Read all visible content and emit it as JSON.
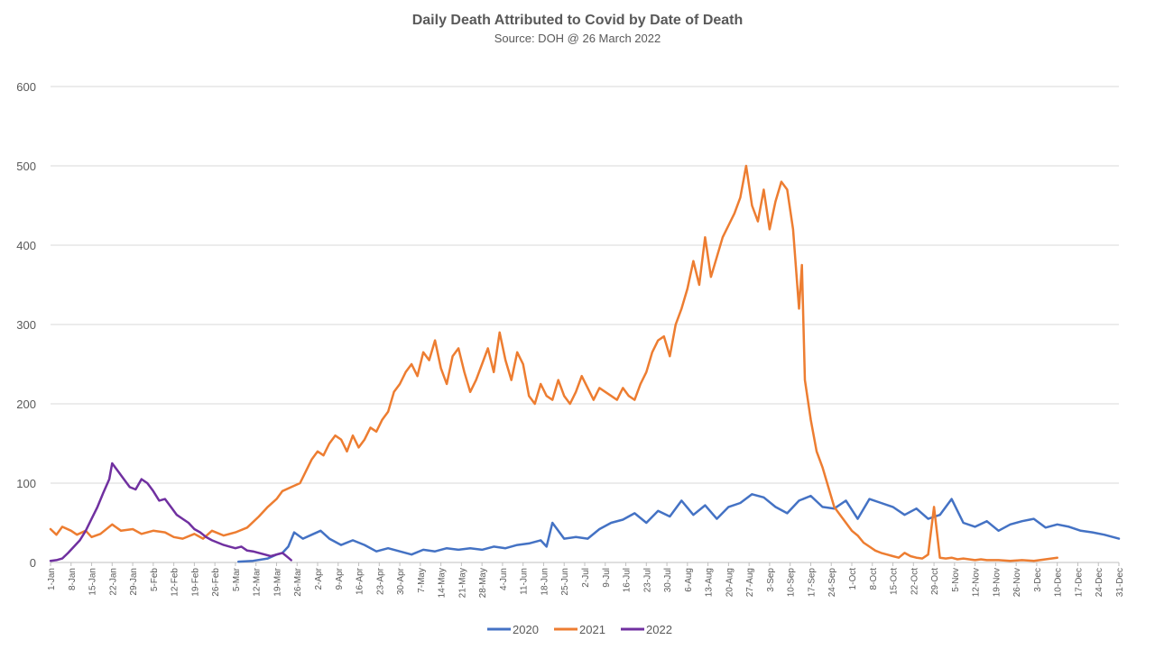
{
  "chart_data": {
    "type": "line",
    "title": "Daily Death Attributed to Covid by Date of Death",
    "subtitle": "Source: DOH @ 26 March 2022",
    "xlabel": "",
    "ylabel": "",
    "ylim": [
      0,
      600
    ],
    "yticks": [
      0,
      100,
      200,
      300,
      400,
      500,
      600
    ],
    "grid": true,
    "legend": "bottom",
    "xlim": [
      1,
      365
    ],
    "xtick_days": [
      1,
      8,
      15,
      22,
      29,
      36,
      43,
      50,
      57,
      64,
      71,
      78,
      85,
      92,
      99,
      106,
      113,
      120,
      127,
      134,
      141,
      148,
      155,
      162,
      169,
      176,
      183,
      190,
      197,
      204,
      211,
      218,
      225,
      232,
      239,
      246,
      253,
      260,
      267,
      274,
      281,
      288,
      295,
      302,
      309,
      316,
      323,
      330,
      337,
      344,
      351,
      358,
      365
    ],
    "xtick_labels": [
      "1-Jan",
      "8-Jan",
      "15-Jan",
      "22-Jan",
      "29-Jan",
      "5-Feb",
      "12-Feb",
      "19-Feb",
      "26-Feb",
      "5-Mar",
      "12-Mar",
      "19-Mar",
      "26-Mar",
      "2-Apr",
      "9-Apr",
      "16-Apr",
      "23-Apr",
      "30-Apr",
      "7-May",
      "14-May",
      "21-May",
      "28-May",
      "4-Jun",
      "11-Jun",
      "18-Jun",
      "25-Jun",
      "2-Jul",
      "9-Jul",
      "16-Jul",
      "23-Jul",
      "30-Jul",
      "6-Aug",
      "13-Aug",
      "20-Aug",
      "27-Aug",
      "3-Sep",
      "10-Sep",
      "17-Sep",
      "24-Sep",
      "1-Oct",
      "8-Oct",
      "15-Oct",
      "22-Oct",
      "29-Oct",
      "5-Nov",
      "12-Nov",
      "19-Nov",
      "26-Nov",
      "3-Dec",
      "10-Dec",
      "17-Dec",
      "24-Dec",
      "31-Dec"
    ],
    "series": [
      {
        "name": "2020",
        "color": "#4472c4",
        "points": [
          [
            65,
            1
          ],
          [
            70,
            2
          ],
          [
            75,
            5
          ],
          [
            78,
            10
          ],
          [
            80,
            12
          ],
          [
            82,
            20
          ],
          [
            84,
            38
          ],
          [
            87,
            30
          ],
          [
            90,
            35
          ],
          [
            93,
            40
          ],
          [
            96,
            30
          ],
          [
            100,
            22
          ],
          [
            104,
            28
          ],
          [
            108,
            22
          ],
          [
            112,
            14
          ],
          [
            116,
            18
          ],
          [
            120,
            14
          ],
          [
            124,
            10
          ],
          [
            128,
            16
          ],
          [
            132,
            14
          ],
          [
            136,
            18
          ],
          [
            140,
            16
          ],
          [
            144,
            18
          ],
          [
            148,
            16
          ],
          [
            152,
            20
          ],
          [
            156,
            18
          ],
          [
            160,
            22
          ],
          [
            164,
            24
          ],
          [
            168,
            28
          ],
          [
            170,
            20
          ],
          [
            172,
            50
          ],
          [
            176,
            30
          ],
          [
            180,
            32
          ],
          [
            184,
            30
          ],
          [
            188,
            42
          ],
          [
            192,
            50
          ],
          [
            196,
            54
          ],
          [
            200,
            62
          ],
          [
            204,
            50
          ],
          [
            208,
            65
          ],
          [
            212,
            58
          ],
          [
            216,
            78
          ],
          [
            220,
            60
          ],
          [
            224,
            72
          ],
          [
            228,
            55
          ],
          [
            232,
            70
          ],
          [
            236,
            75
          ],
          [
            240,
            86
          ],
          [
            244,
            82
          ],
          [
            248,
            70
          ],
          [
            252,
            62
          ],
          [
            256,
            78
          ],
          [
            260,
            84
          ],
          [
            264,
            70
          ],
          [
            268,
            68
          ],
          [
            272,
            78
          ],
          [
            276,
            55
          ],
          [
            280,
            80
          ],
          [
            284,
            75
          ],
          [
            288,
            70
          ],
          [
            292,
            60
          ],
          [
            296,
            68
          ],
          [
            300,
            55
          ],
          [
            304,
            60
          ],
          [
            308,
            80
          ],
          [
            312,
            50
          ],
          [
            316,
            45
          ],
          [
            320,
            52
          ],
          [
            324,
            40
          ],
          [
            328,
            48
          ],
          [
            332,
            52
          ],
          [
            336,
            55
          ],
          [
            340,
            44
          ],
          [
            344,
            48
          ],
          [
            348,
            45
          ],
          [
            352,
            40
          ],
          [
            356,
            38
          ],
          [
            360,
            35
          ],
          [
            365,
            30
          ]
        ]
      },
      {
        "name": "2021",
        "color": "#ed7d31",
        "points": [
          [
            1,
            42
          ],
          [
            3,
            35
          ],
          [
            5,
            45
          ],
          [
            8,
            40
          ],
          [
            10,
            35
          ],
          [
            13,
            40
          ],
          [
            15,
            32
          ],
          [
            18,
            36
          ],
          [
            22,
            48
          ],
          [
            25,
            40
          ],
          [
            29,
            42
          ],
          [
            32,
            36
          ],
          [
            36,
            40
          ],
          [
            40,
            38
          ],
          [
            43,
            32
          ],
          [
            46,
            30
          ],
          [
            50,
            36
          ],
          [
            53,
            30
          ],
          [
            56,
            40
          ],
          [
            60,
            34
          ],
          [
            64,
            38
          ],
          [
            68,
            44
          ],
          [
            72,
            58
          ],
          [
            75,
            70
          ],
          [
            78,
            80
          ],
          [
            80,
            90
          ],
          [
            83,
            95
          ],
          [
            86,
            100
          ],
          [
            88,
            115
          ],
          [
            90,
            130
          ],
          [
            92,
            140
          ],
          [
            94,
            135
          ],
          [
            96,
            150
          ],
          [
            98,
            160
          ],
          [
            100,
            155
          ],
          [
            102,
            140
          ],
          [
            104,
            160
          ],
          [
            106,
            145
          ],
          [
            108,
            155
          ],
          [
            110,
            170
          ],
          [
            112,
            165
          ],
          [
            114,
            180
          ],
          [
            116,
            190
          ],
          [
            118,
            215
          ],
          [
            120,
            225
          ],
          [
            122,
            240
          ],
          [
            124,
            250
          ],
          [
            126,
            235
          ],
          [
            128,
            265
          ],
          [
            130,
            255
          ],
          [
            132,
            280
          ],
          [
            134,
            245
          ],
          [
            136,
            225
          ],
          [
            138,
            260
          ],
          [
            140,
            270
          ],
          [
            142,
            240
          ],
          [
            144,
            215
          ],
          [
            146,
            230
          ],
          [
            148,
            250
          ],
          [
            150,
            270
          ],
          [
            152,
            240
          ],
          [
            154,
            290
          ],
          [
            156,
            255
          ],
          [
            158,
            230
          ],
          [
            160,
            265
          ],
          [
            162,
            250
          ],
          [
            164,
            210
          ],
          [
            166,
            200
          ],
          [
            168,
            225
          ],
          [
            170,
            210
          ],
          [
            172,
            205
          ],
          [
            174,
            230
          ],
          [
            176,
            210
          ],
          [
            178,
            200
          ],
          [
            180,
            215
          ],
          [
            182,
            235
          ],
          [
            184,
            220
          ],
          [
            186,
            205
          ],
          [
            188,
            220
          ],
          [
            190,
            215
          ],
          [
            192,
            210
          ],
          [
            194,
            205
          ],
          [
            196,
            220
          ],
          [
            198,
            210
          ],
          [
            200,
            205
          ],
          [
            202,
            225
          ],
          [
            204,
            240
          ],
          [
            206,
            265
          ],
          [
            208,
            280
          ],
          [
            210,
            285
          ],
          [
            212,
            260
          ],
          [
            214,
            300
          ],
          [
            216,
            320
          ],
          [
            218,
            345
          ],
          [
            220,
            380
          ],
          [
            222,
            350
          ],
          [
            224,
            410
          ],
          [
            226,
            360
          ],
          [
            228,
            385
          ],
          [
            230,
            410
          ],
          [
            232,
            425
          ],
          [
            234,
            440
          ],
          [
            236,
            460
          ],
          [
            238,
            500
          ],
          [
            240,
            450
          ],
          [
            242,
            430
          ],
          [
            244,
            470
          ],
          [
            246,
            420
          ],
          [
            248,
            455
          ],
          [
            250,
            480
          ],
          [
            252,
            470
          ],
          [
            254,
            420
          ],
          [
            256,
            320
          ],
          [
            257,
            375
          ],
          [
            258,
            230
          ],
          [
            260,
            180
          ],
          [
            262,
            140
          ],
          [
            264,
            120
          ],
          [
            266,
            95
          ],
          [
            268,
            70
          ],
          [
            270,
            60
          ],
          [
            272,
            50
          ],
          [
            274,
            40
          ],
          [
            276,
            34
          ],
          [
            278,
            25
          ],
          [
            280,
            20
          ],
          [
            282,
            15
          ],
          [
            284,
            12
          ],
          [
            286,
            10
          ],
          [
            288,
            8
          ],
          [
            290,
            6
          ],
          [
            292,
            12
          ],
          [
            294,
            8
          ],
          [
            296,
            6
          ],
          [
            298,
            5
          ],
          [
            300,
            10
          ],
          [
            302,
            70
          ],
          [
            304,
            6
          ],
          [
            306,
            5
          ],
          [
            308,
            6
          ],
          [
            310,
            4
          ],
          [
            312,
            5
          ],
          [
            314,
            4
          ],
          [
            316,
            3
          ],
          [
            318,
            4
          ],
          [
            320,
            3
          ],
          [
            324,
            3
          ],
          [
            328,
            2
          ],
          [
            332,
            3
          ],
          [
            336,
            2
          ],
          [
            340,
            4
          ],
          [
            344,
            6
          ]
        ]
      },
      {
        "name": "2022",
        "color": "#7030a0",
        "points": [
          [
            1,
            2
          ],
          [
            3,
            3
          ],
          [
            5,
            5
          ],
          [
            7,
            12
          ],
          [
            9,
            20
          ],
          [
            11,
            28
          ],
          [
            13,
            40
          ],
          [
            15,
            55
          ],
          [
            17,
            70
          ],
          [
            19,
            88
          ],
          [
            21,
            105
          ],
          [
            22,
            125
          ],
          [
            24,
            115
          ],
          [
            26,
            105
          ],
          [
            28,
            95
          ],
          [
            30,
            92
          ],
          [
            32,
            105
          ],
          [
            34,
            100
          ],
          [
            36,
            90
          ],
          [
            38,
            78
          ],
          [
            40,
            80
          ],
          [
            42,
            70
          ],
          [
            44,
            60
          ],
          [
            46,
            55
          ],
          [
            48,
            50
          ],
          [
            50,
            42
          ],
          [
            52,
            38
          ],
          [
            54,
            32
          ],
          [
            56,
            28
          ],
          [
            58,
            25
          ],
          [
            60,
            22
          ],
          [
            62,
            20
          ],
          [
            64,
            18
          ],
          [
            66,
            20
          ],
          [
            68,
            15
          ],
          [
            70,
            14
          ],
          [
            72,
            12
          ],
          [
            74,
            10
          ],
          [
            76,
            8
          ],
          [
            78,
            10
          ],
          [
            80,
            12
          ],
          [
            82,
            6
          ],
          [
            83,
            3
          ]
        ]
      }
    ]
  }
}
